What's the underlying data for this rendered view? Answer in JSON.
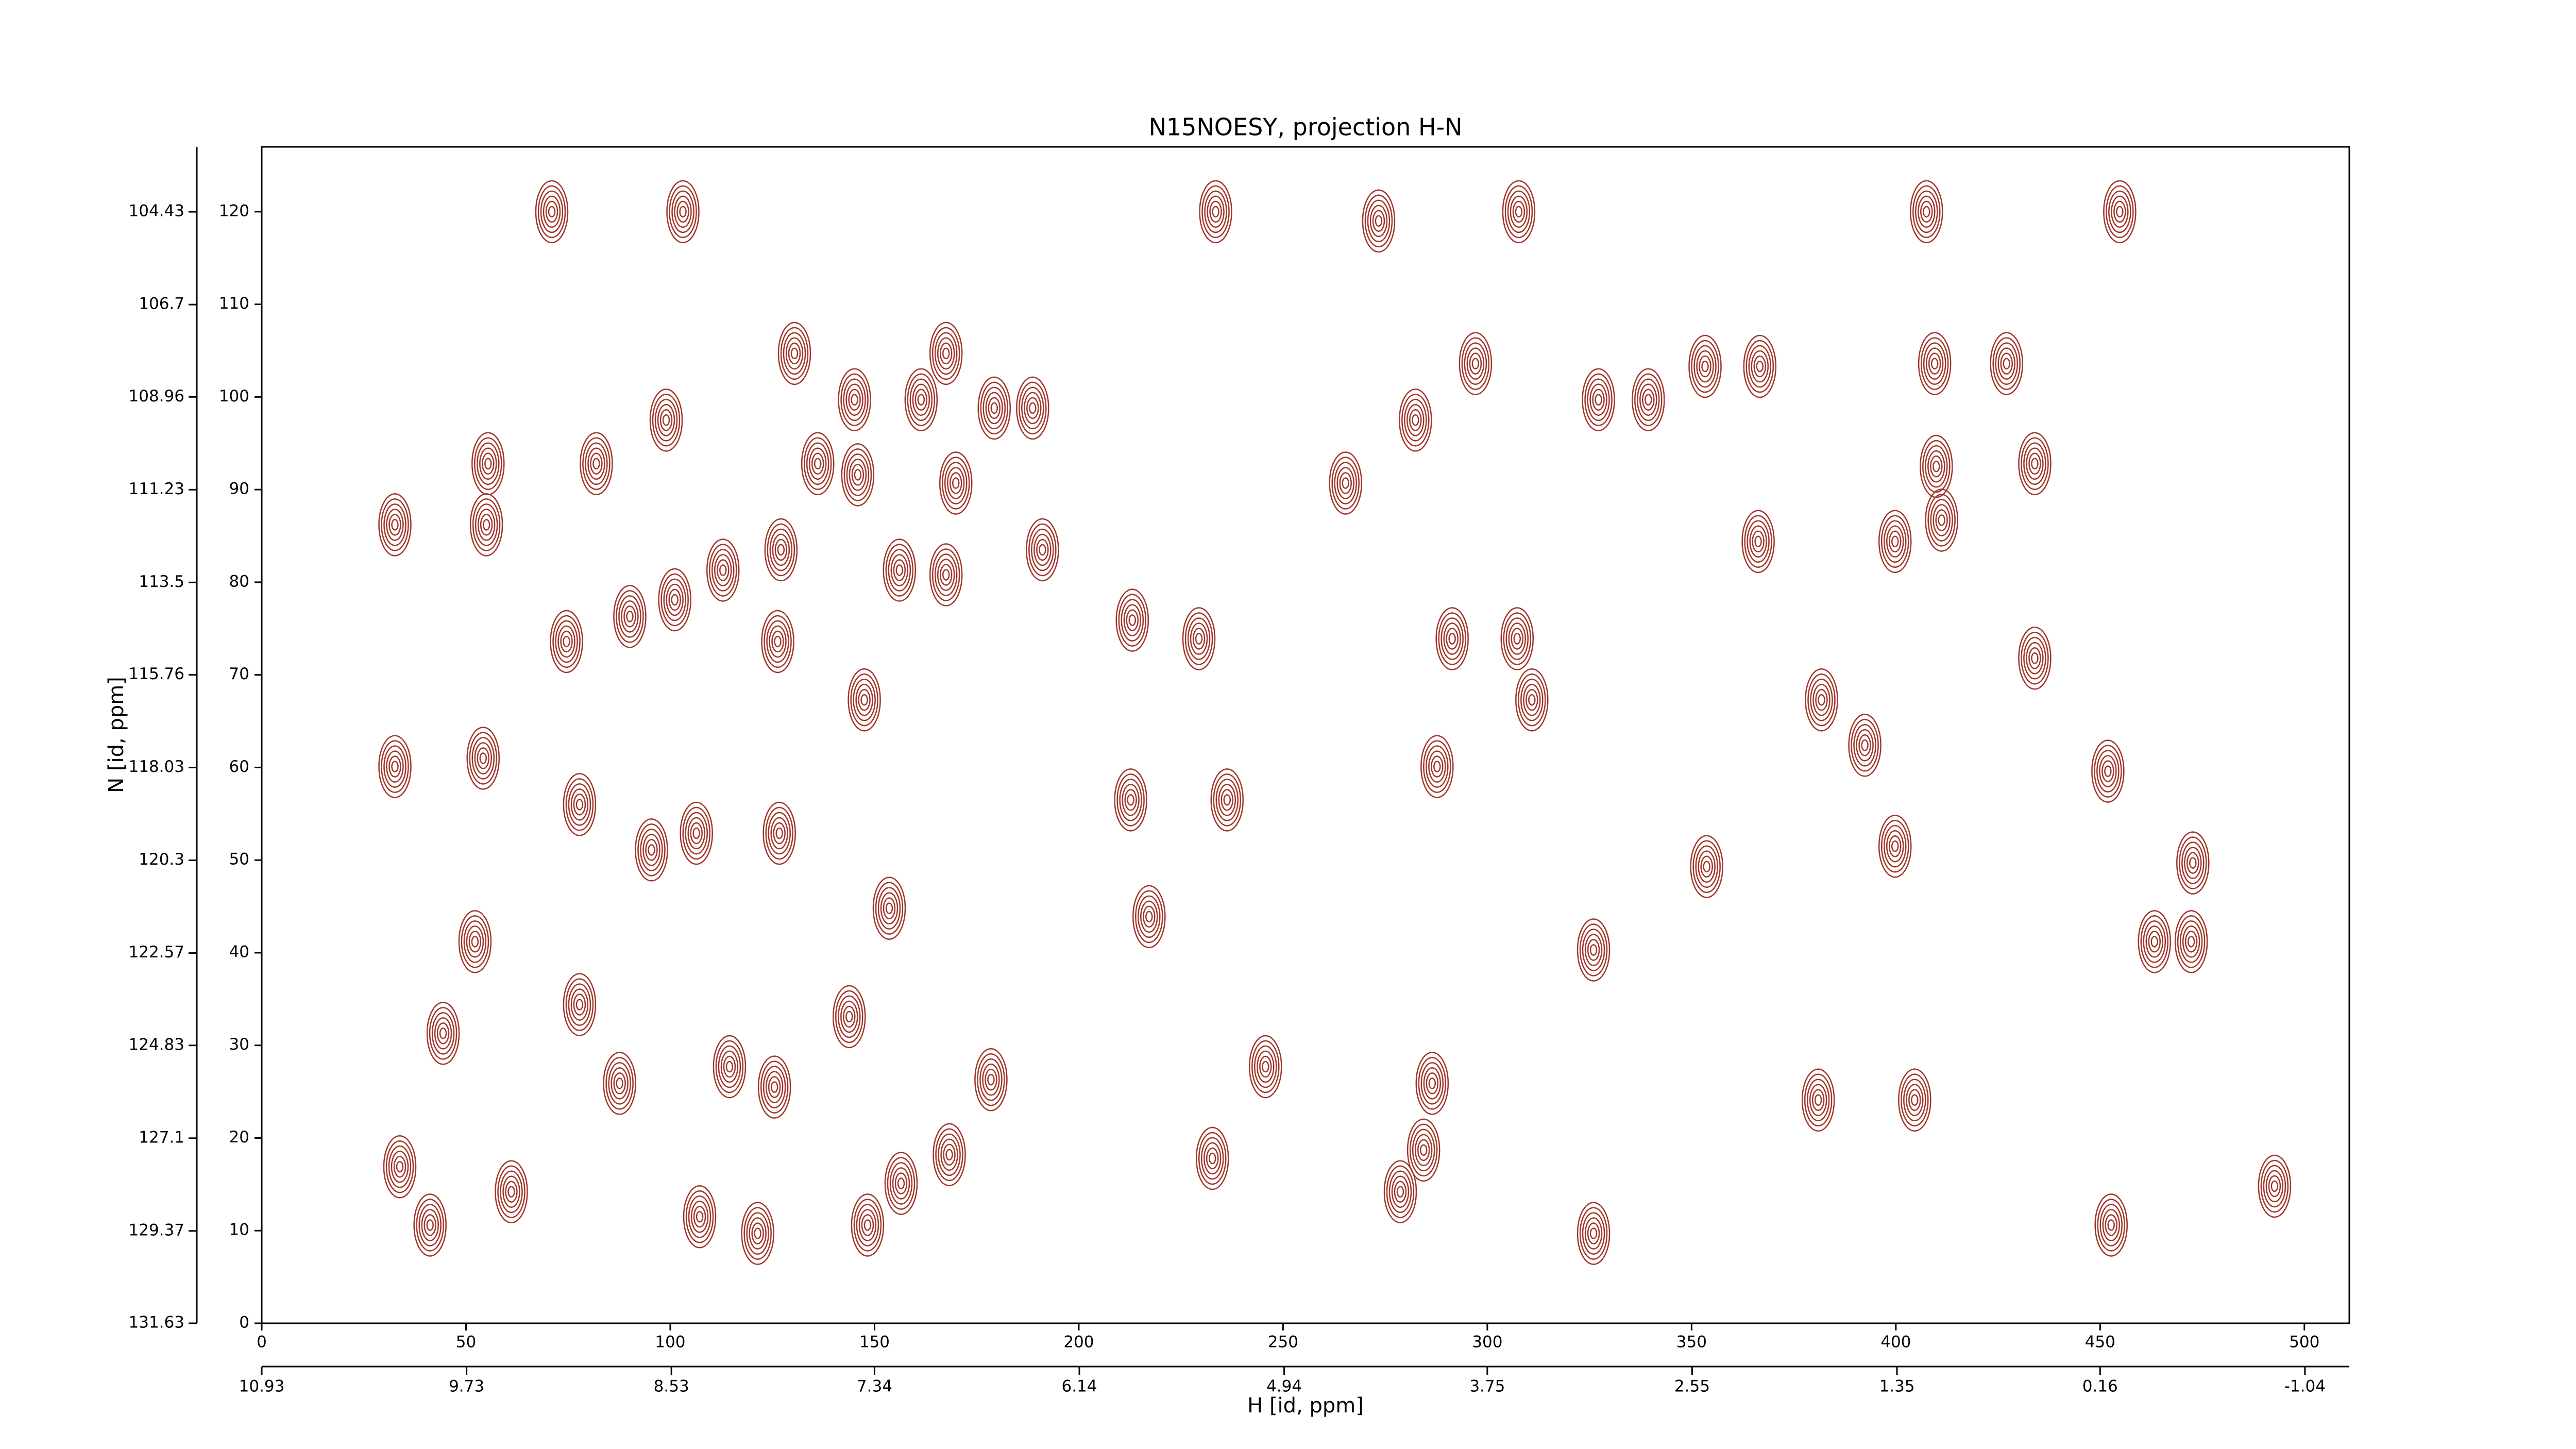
{
  "chart_data": {
    "type": "contour",
    "title": "N15NOESY, projection H-N",
    "x_label": "H [id, ppm]",
    "y_label": "N [id, ppm]",
    "color": "#a0362a",
    "xlim": [
      0,
      511
    ],
    "ylim": [
      0,
      127
    ],
    "xticks": [
      0,
      50,
      100,
      150,
      200,
      250,
      300,
      350,
      400,
      450,
      500
    ],
    "yticks": [
      0,
      10,
      20,
      30,
      40,
      50,
      60,
      70,
      80,
      90,
      100,
      110,
      120
    ],
    "x2lim": [
      10.93,
      -1.3
    ],
    "x2ticks": [
      10.93,
      9.73,
      8.53,
      7.34,
      6.14,
      4.94,
      3.75,
      2.55,
      1.35,
      0.16,
      -1.04
    ],
    "y2lim": [
      131.63,
      102.84
    ],
    "y2ticks": [
      131.63,
      129.37,
      127.1,
      124.83,
      122.57,
      120.3,
      118.03,
      115.76,
      113.5,
      111.23,
      108.96,
      106.7,
      104.43
    ],
    "peaks": {
      "x": [
        71,
        233.5,
        307.7,
        407.5,
        454.8,
        103.1,
        273.4,
        130.4,
        167.5,
        353.3,
        366.7,
        297.1,
        409.5,
        427.1,
        145.1,
        161.4,
        179.3,
        188.7,
        99.0,
        282.4,
        327.2,
        339.4,
        55.4,
        81.9,
        136.1,
        145.9,
        169.9,
        265.3,
        409.9,
        434.0,
        55.0,
        32.6,
        411.2,
        366.3,
        399.8,
        191.1,
        112.9,
        127.1,
        156.1,
        167.5,
        101.1,
        90.1,
        213.1,
        229.4,
        291.4,
        307.3,
        74.6,
        126.3,
        147.5,
        310.9,
        381.8,
        434.0,
        32.6,
        54.2,
        77.8,
        212.7,
        236.3,
        287.7,
        392.4,
        451.9,
        106.4,
        126.7,
        95.4,
        353.7,
        399.8,
        472.7,
        52.2,
        153.6,
        217.2,
        326.0,
        463.3,
        472.3,
        44.4,
        77.8,
        143.8,
        245.7,
        286.5,
        404.6,
        381.0,
        114.5,
        125.5,
        87.6,
        178.5,
        33.8,
        41.2,
        61.1,
        107.2,
        121.4,
        148.3,
        156.5,
        168.3,
        232.7,
        284.4,
        278.7,
        326.0,
        452.7,
        492.7
      ],
      "y": [
        120,
        120,
        120,
        120,
        120,
        120,
        119,
        104.7,
        104.7,
        103.3,
        103.3,
        103.6,
        103.6,
        103.6,
        99.7,
        99.7,
        98.8,
        98.8,
        97.5,
        97.5,
        99.7,
        99.7,
        92.8,
        92.8,
        92.8,
        91.6,
        90.7,
        90.7,
        92.5,
        92.8,
        86.2,
        86.2,
        86.7,
        84.4,
        84.4,
        83.5,
        81.3,
        83.5,
        81.3,
        80.8,
        78.1,
        76.3,
        75.9,
        73.9,
        73.9,
        73.9,
        73.6,
        73.6,
        67.3,
        67.3,
        67.3,
        71.8,
        60.1,
        61.0,
        56.0,
        56.5,
        56.5,
        60.1,
        62.4,
        59.6,
        52.9,
        52.9,
        51.1,
        49.3,
        51.5,
        49.7,
        41.2,
        44.8,
        43.9,
        40.3,
        41.2,
        41.2,
        31.3,
        34.4,
        33.1,
        27.7,
        25.9,
        24.1,
        24.1,
        27.7,
        25.5,
        25.9,
        26.3,
        16.9,
        10.6,
        14.2,
        11.5,
        9.7,
        10.6,
        15.1,
        18.2,
        17.8,
        18.7,
        14.2,
        9.7,
        10.6,
        14.8
      ]
    }
  }
}
